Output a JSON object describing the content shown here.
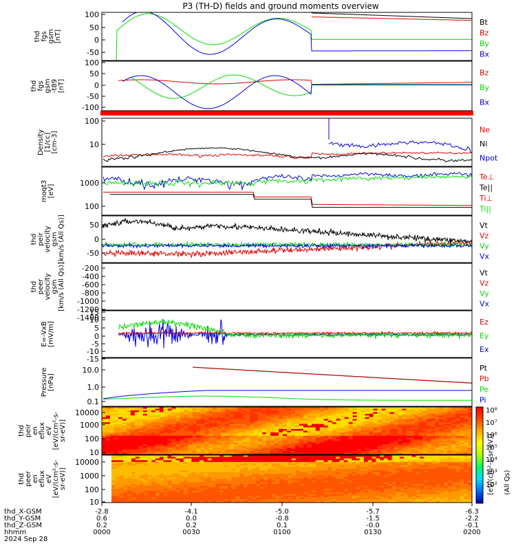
{
  "title": "P3 (TH-D) fields and ground moments overview",
  "date_label": "2024 Sep 28",
  "xaxis": {
    "rows": [
      {
        "label": "thd_X-GSM",
        "values": [
          "-2.8",
          "-4.1",
          "-5.0",
          "-5.7",
          "-6.3"
        ]
      },
      {
        "label": "thd_Y-GSM",
        "values": [
          "0.6",
          "0.0",
          "-0.8",
          "-1.5",
          "-2.2"
        ]
      },
      {
        "label": "thd_Z-GSM",
        "values": [
          "0.2",
          "0.2",
          "0.1",
          "-0.0",
          "-0.1"
        ]
      },
      {
        "label": "hhmm",
        "values": [
          "0000",
          "0030",
          "0100",
          "0130",
          "0200"
        ]
      }
    ]
  },
  "colorbar_label": "[eV/(cm²-s-sr-eV)]",
  "colorbar_sub": "(All Qs)",
  "colorbar_ticks": [
    "10⁸",
    "10⁷",
    "10⁶",
    "10⁵",
    "10⁴",
    "10³",
    "10²"
  ],
  "colors": {
    "black": "#000000",
    "red": "#dd0000",
    "green": "#00dd00",
    "blue": "#0000dd"
  },
  "chart_data": [
    {
      "type": "line",
      "ylabel": [
        "thd",
        "fgs",
        "gsm",
        "[nT]"
      ],
      "ylim": [
        -60,
        100
      ],
      "yticks": [
        "100",
        "50",
        "0",
        "-50"
      ],
      "legend": [
        {
          "name": "Bt",
          "color": "#000000"
        },
        {
          "name": "Bz",
          "color": "#dd0000"
        },
        {
          "name": "By",
          "color": "#00dd00"
        },
        {
          "name": "Bx",
          "color": "#0000dd"
        }
      ]
    },
    {
      "type": "line",
      "ylabel": [
        "thd",
        "fgs",
        "gsm",
        "-t89",
        "[nT]"
      ],
      "ylim": [
        -130,
        110
      ],
      "yticks": [
        "100",
        "50",
        "0",
        "-50",
        "-100"
      ],
      "legend": [
        {
          "name": "Bz",
          "color": "#dd0000"
        },
        {
          "name": "By",
          "color": "#00dd00"
        },
        {
          "name": "Bx",
          "color": "#0000dd"
        }
      ]
    },
    {
      "type": "line",
      "ylabel": [
        "Density",
        "[1/cc]",
        "[cm-3]"
      ],
      "scale": "log",
      "yticks": [
        "100",
        "10"
      ],
      "legend": [
        {
          "name": "Ne",
          "color": "#dd0000"
        },
        {
          "name": "Ni",
          "color": "#000000"
        },
        {
          "name": "Npot",
          "color": "#0000dd"
        }
      ]
    },
    {
      "type": "line",
      "ylabel": [
        "moqt3",
        "[eV]"
      ],
      "scale": "log",
      "yticks": [
        "1000",
        "100"
      ],
      "legend": [
        {
          "name": "Te⊥",
          "color": "#dd0000"
        },
        {
          "name": "Te||",
          "color": "#000000"
        },
        {
          "name": "Ti⊥",
          "color": "#dd0000"
        },
        {
          "name": "Ti||",
          "color": "#00dd00"
        }
      ]
    },
    {
      "type": "line",
      "ylabel": [
        "thd",
        "peir",
        "velocity",
        "gsm",
        "[km/s (All Qs)]"
      ],
      "ylim": [
        -50,
        80
      ],
      "yticks": [
        "50",
        "0",
        "-50"
      ],
      "legend": [
        {
          "name": "Vt",
          "color": "#000000"
        },
        {
          "name": "Vz",
          "color": "#dd0000"
        },
        {
          "name": "Vy",
          "color": "#00dd00"
        },
        {
          "name": "Vx",
          "color": "#0000dd"
        }
      ]
    },
    {
      "type": "line",
      "ylabel": [
        "thd",
        "peer",
        "velocity",
        "gsm",
        "[km/s (All Qs)]"
      ],
      "ylim": [
        -1400,
        0
      ],
      "yticks": [
        "-200",
        "-400",
        "-600",
        "-800",
        "-1000",
        "-1200",
        "-1400"
      ],
      "legend": [
        {
          "name": "Vt",
          "color": "#000000"
        },
        {
          "name": "Vz",
          "color": "#dd0000"
        },
        {
          "name": "Vy",
          "color": "#00dd00"
        },
        {
          "name": "Vx",
          "color": "#0000dd"
        }
      ]
    },
    {
      "type": "line",
      "ylabel": [
        "E=-VxB",
        "[mV/m]"
      ],
      "ylim": [
        -15,
        15
      ],
      "yticks": [
        "15",
        "10",
        "5",
        "0",
        "-5",
        "-10",
        "-15"
      ],
      "legend": [
        {
          "name": "Ez",
          "color": "#dd0000"
        },
        {
          "name": "Ey",
          "color": "#00dd00"
        },
        {
          "name": "Ex",
          "color": "#0000dd"
        }
      ]
    },
    {
      "type": "line",
      "ylabel": [
        "Pressure",
        "[nPa]"
      ],
      "scale": "log",
      "yticks": [
        "10.0",
        "1.0",
        "0.1"
      ],
      "legend": [
        {
          "name": "Pt",
          "color": "#000000"
        },
        {
          "name": "Pb",
          "color": "#dd0000"
        },
        {
          "name": "Pe",
          "color": "#00dd00"
        },
        {
          "name": "Pi",
          "color": "#0000dd"
        }
      ]
    },
    {
      "type": "heatmap",
      "ylabel": [
        "thd",
        "peir",
        "en",
        "eflux",
        "eV",
        "[eV/(cm²-s-",
        "sr-eV)]"
      ],
      "yticks": [
        "10000",
        "1000",
        "100",
        "10"
      ]
    },
    {
      "type": "heatmap",
      "ylabel": [
        "thd",
        "peer",
        "en",
        "eflux",
        "eV",
        "[eV/(cm²-s-",
        "sr-eV)]"
      ],
      "yticks": [
        "10000",
        "1000",
        "100",
        "10"
      ]
    }
  ]
}
